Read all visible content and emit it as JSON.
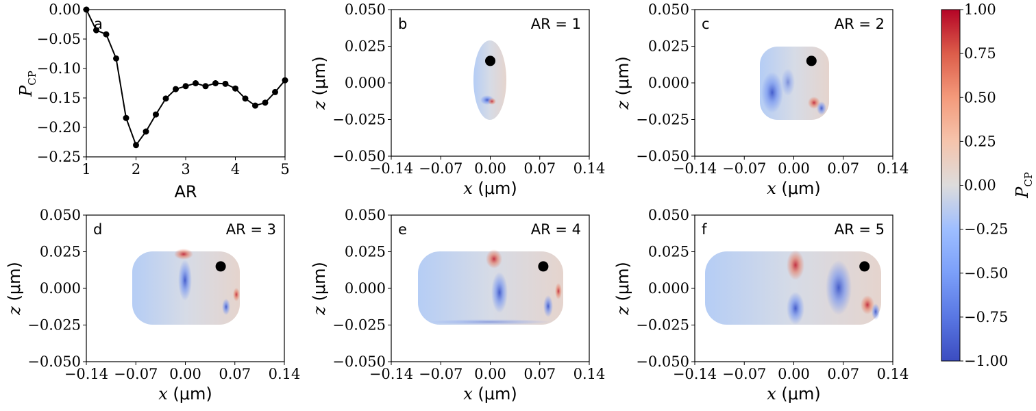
{
  "colors": {
    "axis": "#000000",
    "line": "#000000",
    "marker": "#000000"
  },
  "chart_data": [
    {
      "type": "line",
      "panel": "a",
      "x": [
        1.0,
        1.2,
        1.4,
        1.6,
        1.8,
        2.0,
        2.2,
        2.4,
        2.6,
        2.8,
        3.0,
        3.2,
        3.4,
        3.6,
        3.8,
        4.0,
        4.2,
        4.4,
        4.6,
        4.8,
        5.0
      ],
      "y": [
        0.0,
        -0.035,
        -0.042,
        -0.083,
        -0.184,
        -0.23,
        -0.207,
        -0.178,
        -0.151,
        -0.135,
        -0.13,
        -0.125,
        -0.13,
        -0.125,
        -0.126,
        -0.134,
        -0.151,
        -0.163,
        -0.158,
        -0.14,
        -0.12
      ],
      "xlim": [
        1,
        5
      ],
      "ylim": [
        -0.25,
        0.0
      ],
      "xticks": [
        "1",
        "2",
        "3",
        "4",
        "5"
      ],
      "yticks": [
        "0.00",
        "−0.05",
        "−0.10",
        "−0.15",
        "−0.20",
        "−0.25"
      ],
      "xlabel": "AR",
      "ylabel_main": "P",
      "ylabel_sub": "CP"
    },
    {
      "type": "heatmap",
      "panel": "b",
      "annotation": "AR = 1",
      "aspect_ratio": 1,
      "dot": {
        "x": 0.0,
        "z": 0.015
      },
      "xlim": [
        -0.14,
        0.14
      ],
      "ylim": [
        -0.05,
        0.05
      ]
    },
    {
      "type": "heatmap",
      "panel": "c",
      "annotation": "AR = 2",
      "aspect_ratio": 2,
      "dot": {
        "x": 0.025,
        "z": 0.015
      },
      "xlim": [
        -0.14,
        0.14
      ],
      "ylim": [
        -0.05,
        0.05
      ]
    },
    {
      "type": "heatmap",
      "panel": "d",
      "annotation": "AR = 3",
      "aspect_ratio": 3,
      "dot": {
        "x": 0.05,
        "z": 0.015
      },
      "xlim": [
        -0.14,
        0.14
      ],
      "ylim": [
        -0.05,
        0.05
      ]
    },
    {
      "type": "heatmap",
      "panel": "e",
      "annotation": "AR = 4",
      "aspect_ratio": 4,
      "dot": {
        "x": 0.075,
        "z": 0.015
      },
      "xlim": [
        -0.14,
        0.14
      ],
      "ylim": [
        -0.05,
        0.05
      ]
    },
    {
      "type": "heatmap",
      "panel": "f",
      "annotation": "AR = 5",
      "aspect_ratio": 5,
      "dot": {
        "x": 0.1,
        "z": 0.015
      },
      "xlim": [
        -0.14,
        0.14
      ],
      "ylim": [
        -0.05,
        0.05
      ]
    }
  ],
  "heatmap_axes": {
    "xticks": [
      "−0.14",
      "−0.07",
      "0.00",
      "0.07",
      "0.14"
    ],
    "yticks": [
      "0.050",
      "0.025",
      "0.000",
      "−0.025",
      "−0.050"
    ],
    "xlabel_var": "x",
    "xlabel_unit": " (μm)",
    "ylabel_var": "z",
    "ylabel_unit": " (μm)"
  },
  "colorbar": {
    "ticks": [
      "1.00",
      "0.75",
      "0.50",
      "0.25",
      "0.00",
      "−0.25",
      "−0.50",
      "−0.75",
      "−1.00"
    ],
    "range": [
      -1.0,
      1.0
    ],
    "label_main": "P",
    "label_sub": "CP",
    "colormap": "coolwarm"
  }
}
